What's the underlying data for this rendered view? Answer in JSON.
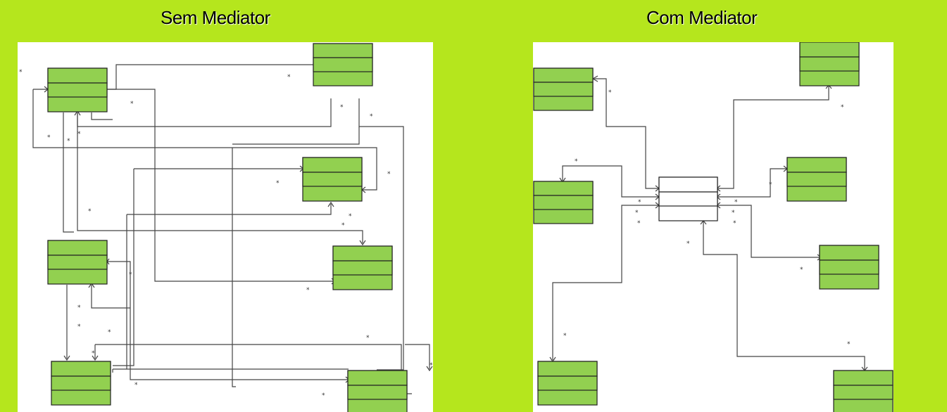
{
  "left": {
    "title": "Sem Mediator"
  },
  "right": {
    "title": "Com Mediator"
  },
  "colors": {
    "background": "#b5e61d",
    "class_box_fill": "#92d050",
    "mediator_fill": "#ffffff",
    "line": "#444444"
  },
  "multiplicity_symbol": "*"
}
